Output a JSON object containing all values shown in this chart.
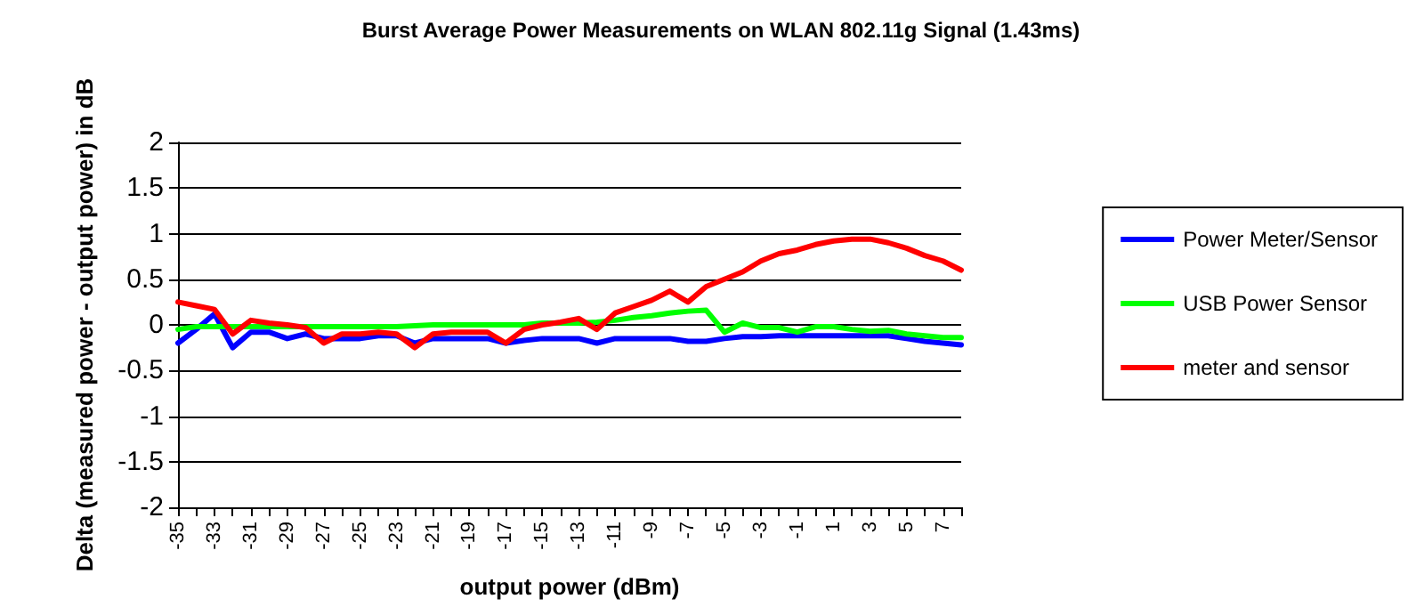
{
  "chart_data": {
    "type": "line",
    "title": "Burst Average Power Measurements on WLAN 802.11g Signal (1.43ms)",
    "xlabel": "output power (dBm)",
    "ylabel": "Delta (measured power - output power) in dB",
    "categories": [
      "-35",
      null,
      "-33",
      null,
      "-31",
      null,
      "-29",
      null,
      "-27",
      null,
      "-25",
      null,
      "-23",
      null,
      "-21",
      null,
      "-19",
      null,
      "-17",
      null,
      "-15",
      null,
      "-13",
      null,
      "-11",
      null,
      "-9",
      null,
      "-7",
      null,
      "-5",
      null,
      "-3",
      null,
      "-1",
      null,
      "1",
      null,
      "3",
      null,
      "5",
      null,
      "7",
      null
    ],
    "series": [
      {
        "name": "Power Meter/Sensor",
        "color": "#0000ff",
        "values": [
          -0.2,
          -0.05,
          0.12,
          -0.25,
          -0.08,
          -0.08,
          -0.15,
          -0.1,
          -0.15,
          -0.15,
          -0.15,
          -0.12,
          -0.12,
          -0.2,
          -0.15,
          -0.15,
          -0.15,
          -0.15,
          -0.2,
          -0.17,
          -0.15,
          -0.15,
          -0.15,
          -0.2,
          -0.15,
          -0.15,
          -0.15,
          -0.15,
          -0.18,
          -0.18,
          -0.15,
          -0.13,
          -0.13,
          -0.12,
          -0.12,
          -0.12,
          -0.12,
          -0.12,
          -0.12,
          -0.12,
          -0.15,
          -0.18,
          -0.2,
          -0.22
        ]
      },
      {
        "name": "USB Power Sensor",
        "color": "#00ff00",
        "values": [
          -0.05,
          -0.02,
          -0.02,
          -0.02,
          -0.02,
          -0.02,
          -0.02,
          -0.02,
          -0.02,
          -0.02,
          -0.02,
          -0.02,
          -0.02,
          -0.01,
          0,
          0,
          0,
          0,
          0,
          0,
          0.02,
          0.02,
          0.02,
          0.03,
          0.05,
          0.08,
          0.1,
          0.13,
          0.15,
          0.16,
          -0.08,
          0.02,
          -0.03,
          -0.03,
          -0.08,
          -0.02,
          -0.02,
          -0.05,
          -0.07,
          -0.06,
          -0.1,
          -0.12,
          -0.14,
          -0.14
        ]
      },
      {
        "name": "meter and sensor",
        "color": "#ff0000",
        "values": [
          0.25,
          0.21,
          0.17,
          -0.1,
          0.05,
          0.02,
          0,
          -0.03,
          -0.2,
          -0.1,
          -0.1,
          -0.08,
          -0.1,
          -0.25,
          -0.1,
          -0.08,
          -0.08,
          -0.08,
          -0.2,
          -0.05,
          0,
          0.03,
          0.07,
          -0.05,
          0.13,
          0.2,
          0.27,
          0.37,
          0.25,
          0.42,
          0.5,
          0.58,
          0.7,
          0.78,
          0.82,
          0.88,
          0.92,
          0.94,
          0.94,
          0.9,
          0.84,
          0.76,
          0.7,
          0.6
        ]
      }
    ],
    "ylim": [
      -2,
      2
    ],
    "yticks": [
      -2,
      -1.5,
      -1,
      -0.5,
      0,
      0.5,
      1,
      1.5,
      2
    ],
    "grid": "y",
    "legend": "right",
    "marker": "none",
    "line_style": "solid"
  }
}
